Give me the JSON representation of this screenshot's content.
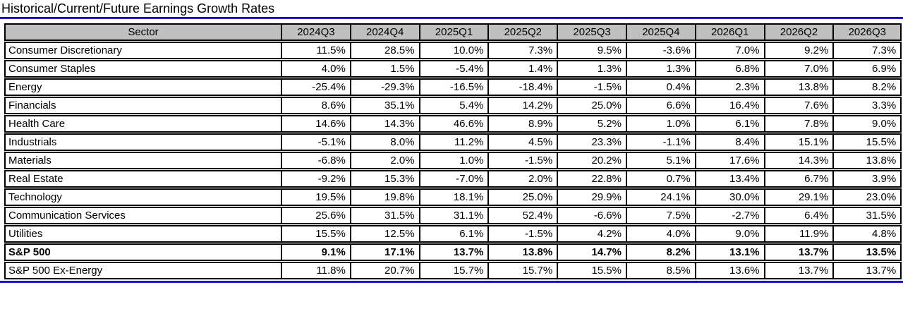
{
  "title": "Historical/Current/Future Earnings Growth Rates",
  "colors": {
    "rule_blue": "#2222cc",
    "header_bg": "#c0c0c0",
    "border": "#000000",
    "background": "#ffffff"
  },
  "table": {
    "columns": [
      "Sector",
      "2024Q3",
      "2024Q4",
      "2025Q1",
      "2025Q2",
      "2025Q3",
      "2025Q4",
      "2026Q1",
      "2026Q2",
      "2026Q3"
    ],
    "rows": [
      {
        "sector": "Consumer Discretionary",
        "bold": false,
        "values": [
          "11.5%",
          "28.5%",
          "10.0%",
          "7.3%",
          "9.5%",
          "-3.6%",
          "7.0%",
          "9.2%",
          "7.3%"
        ]
      },
      {
        "sector": "Consumer Staples",
        "bold": false,
        "values": [
          "4.0%",
          "1.5%",
          "-5.4%",
          "1.4%",
          "1.3%",
          "1.3%",
          "6.8%",
          "7.0%",
          "6.9%"
        ]
      },
      {
        "sector": "Energy",
        "bold": false,
        "values": [
          "-25.4%",
          "-29.3%",
          "-16.5%",
          "-18.4%",
          "-1.5%",
          "0.4%",
          "2.3%",
          "13.8%",
          "8.2%"
        ]
      },
      {
        "sector": "Financials",
        "bold": false,
        "values": [
          "8.6%",
          "35.1%",
          "5.4%",
          "14.2%",
          "25.0%",
          "6.6%",
          "16.4%",
          "7.6%",
          "3.3%"
        ]
      },
      {
        "sector": "Health Care",
        "bold": false,
        "values": [
          "14.6%",
          "14.3%",
          "46.6%",
          "8.9%",
          "5.2%",
          "1.0%",
          "6.1%",
          "7.8%",
          "9.0%"
        ]
      },
      {
        "sector": "Industrials",
        "bold": false,
        "values": [
          "-5.1%",
          "8.0%",
          "11.2%",
          "4.5%",
          "23.3%",
          "-1.1%",
          "8.4%",
          "15.1%",
          "15.5%"
        ]
      },
      {
        "sector": "Materials",
        "bold": false,
        "values": [
          "-6.8%",
          "2.0%",
          "1.0%",
          "-1.5%",
          "20.2%",
          "5.1%",
          "17.6%",
          "14.3%",
          "13.8%"
        ]
      },
      {
        "sector": "Real Estate",
        "bold": false,
        "values": [
          "-9.2%",
          "15.3%",
          "-7.0%",
          "2.0%",
          "22.8%",
          "0.7%",
          "13.4%",
          "6.7%",
          "3.9%"
        ]
      },
      {
        "sector": "Technology",
        "bold": false,
        "values": [
          "19.5%",
          "19.8%",
          "18.1%",
          "25.0%",
          "29.9%",
          "24.1%",
          "30.0%",
          "29.1%",
          "23.0%"
        ]
      },
      {
        "sector": "Communication Services",
        "bold": false,
        "values": [
          "25.6%",
          "31.5%",
          "31.1%",
          "52.4%",
          "-6.6%",
          "7.5%",
          "-2.7%",
          "6.4%",
          "31.5%"
        ]
      },
      {
        "sector": "Utilities",
        "bold": false,
        "values": [
          "15.5%",
          "12.5%",
          "6.1%",
          "-1.5%",
          "4.2%",
          "4.0%",
          "9.0%",
          "11.9%",
          "4.8%"
        ]
      },
      {
        "sector": "S&P 500",
        "bold": true,
        "values": [
          "9.1%",
          "17.1%",
          "13.7%",
          "13.8%",
          "14.7%",
          "8.2%",
          "13.1%",
          "13.7%",
          "13.5%"
        ]
      },
      {
        "sector": "S&P 500 Ex-Energy",
        "bold": false,
        "values": [
          "11.8%",
          "20.7%",
          "15.7%",
          "15.7%",
          "15.5%",
          "8.5%",
          "13.6%",
          "13.7%",
          "13.7%"
        ]
      }
    ]
  },
  "chart_data": {
    "type": "table",
    "title": "Historical/Current/Future Earnings Growth Rates",
    "unit": "percent",
    "categories": [
      "2024Q3",
      "2024Q4",
      "2025Q1",
      "2025Q2",
      "2025Q3",
      "2025Q4",
      "2026Q1",
      "2026Q2",
      "2026Q3"
    ],
    "series": [
      {
        "name": "Consumer Discretionary",
        "values": [
          11.5,
          28.5,
          10.0,
          7.3,
          9.5,
          -3.6,
          7.0,
          9.2,
          7.3
        ]
      },
      {
        "name": "Consumer Staples",
        "values": [
          4.0,
          1.5,
          -5.4,
          1.4,
          1.3,
          1.3,
          6.8,
          7.0,
          6.9
        ]
      },
      {
        "name": "Energy",
        "values": [
          -25.4,
          -29.3,
          -16.5,
          -18.4,
          -1.5,
          0.4,
          2.3,
          13.8,
          8.2
        ]
      },
      {
        "name": "Financials",
        "values": [
          8.6,
          35.1,
          5.4,
          14.2,
          25.0,
          6.6,
          16.4,
          7.6,
          3.3
        ]
      },
      {
        "name": "Health Care",
        "values": [
          14.6,
          14.3,
          46.6,
          8.9,
          5.2,
          1.0,
          6.1,
          7.8,
          9.0
        ]
      },
      {
        "name": "Industrials",
        "values": [
          -5.1,
          8.0,
          11.2,
          4.5,
          23.3,
          -1.1,
          8.4,
          15.1,
          15.5
        ]
      },
      {
        "name": "Materials",
        "values": [
          -6.8,
          2.0,
          1.0,
          -1.5,
          20.2,
          5.1,
          17.6,
          14.3,
          13.8
        ]
      },
      {
        "name": "Real Estate",
        "values": [
          -9.2,
          15.3,
          -7.0,
          2.0,
          22.8,
          0.7,
          13.4,
          6.7,
          3.9
        ]
      },
      {
        "name": "Technology",
        "values": [
          19.5,
          19.8,
          18.1,
          25.0,
          29.9,
          24.1,
          30.0,
          29.1,
          23.0
        ]
      },
      {
        "name": "Communication Services",
        "values": [
          25.6,
          31.5,
          31.1,
          52.4,
          -6.6,
          7.5,
          -2.7,
          6.4,
          31.5
        ]
      },
      {
        "name": "Utilities",
        "values": [
          15.5,
          12.5,
          6.1,
          -1.5,
          4.2,
          4.0,
          9.0,
          11.9,
          4.8
        ]
      },
      {
        "name": "S&P 500",
        "values": [
          9.1,
          17.1,
          13.7,
          13.8,
          14.7,
          8.2,
          13.1,
          13.7,
          13.5
        ]
      },
      {
        "name": "S&P 500 Ex-Energy",
        "values": [
          11.8,
          20.7,
          15.7,
          15.7,
          15.5,
          8.5,
          13.6,
          13.7,
          13.7
        ]
      }
    ]
  }
}
